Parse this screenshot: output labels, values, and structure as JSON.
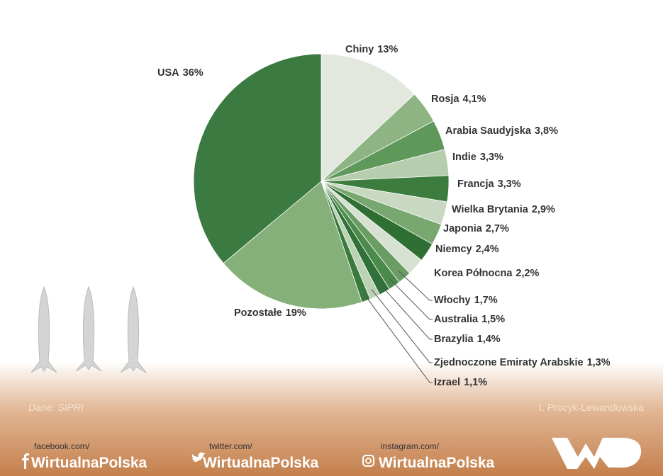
{
  "chart_data": {
    "type": "pie",
    "categories": [
      "Chiny",
      "Rosja",
      "Arabia Saudyjska",
      "Indie",
      "Francja",
      "Wielka Brytania",
      "Japonia",
      "Niemcy",
      "Korea Północna",
      "Włochy",
      "Australia",
      "Brazylia",
      "Zjednoczone Emiraty Arabskie",
      "Izrael",
      "Pozostałe",
      "USA"
    ],
    "values": [
      13,
      4.1,
      3.8,
      3.3,
      3.3,
      2.9,
      2.7,
      2.4,
      2.2,
      1.7,
      1.5,
      1.4,
      1.3,
      1.1,
      19,
      36
    ],
    "value_labels": [
      "13%",
      "4,1%",
      "3,8%",
      "3,3%",
      "3,3%",
      "2,9%",
      "2,7%",
      "2,4%",
      "2,2%",
      "1,7%",
      "1,5%",
      "1,4%",
      "1,3%",
      "1,1%",
      "19%",
      "36%"
    ],
    "colors": [
      "#e3e8df",
      "#8db482",
      "#5e985a",
      "#b6cead",
      "#3c7d3f",
      "#c9d9c1",
      "#78a770",
      "#2f6f34",
      "#d7e1d1",
      "#699d63",
      "#4a8a4a",
      "#30713a",
      "#bcd2b4",
      "#3a7a3c",
      "#86b07a",
      "#3b7a40"
    ]
  },
  "footer": {
    "source": "Dane: SIPRI",
    "author": "I. Procyk-Lewandowska",
    "social": [
      {
        "site": "facebook.com/",
        "handle": "WirtualnaPolska"
      },
      {
        "site": "twitter.com/",
        "handle": "WirtualnaPolska"
      },
      {
        "site": "instagram.com/",
        "handle": "WirtualnaPolska"
      }
    ]
  }
}
